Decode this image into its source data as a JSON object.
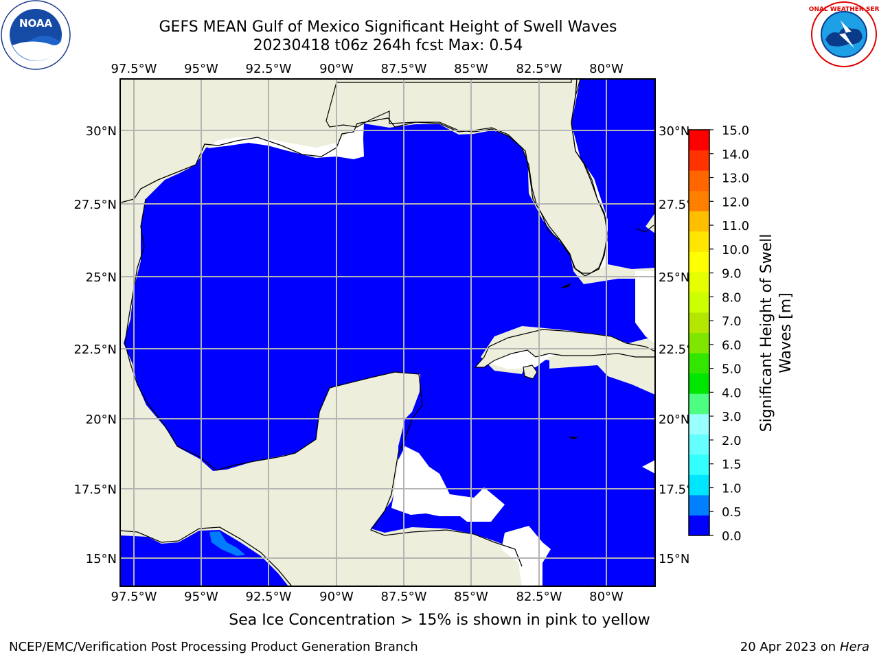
{
  "header": {
    "title": "GEFS MEAN Gulf of Mexico Significant Height of Swell Waves",
    "subtitle": "20230418 t06z 264h fcst   Max: 0.54"
  },
  "logos": {
    "left": {
      "name": "noaa-logo",
      "text": "NOAA"
    },
    "right": {
      "name": "nws-logo",
      "text": "NATIONAL WEATHER SERVICE"
    }
  },
  "map": {
    "lon_labels": [
      "97.5°W",
      "95°W",
      "92.5°W",
      "90°W",
      "87.5°W",
      "85°W",
      "82.5°W",
      "80°W"
    ],
    "lat_labels": [
      "30°N",
      "27.5°N",
      "25°N",
      "22.5°N",
      "20°N",
      "17.5°N",
      "15°N"
    ],
    "colors": {
      "land": "#eeeedc",
      "ocean": "#0000ff",
      "grid": "#b4b4b4",
      "nodata": "#ffffff",
      "swell_05": "#007cff"
    }
  },
  "colorbar": {
    "label": "Significant Height of Swell Waves [m]",
    "label_line1": "Significant Height of Swell",
    "label_line2": "Waves [m]",
    "ticks": [
      "0.0",
      "0.5",
      "1.0",
      "1.5",
      "2.0",
      "3.0",
      "4.0",
      "5.0",
      "6.0",
      "7.0",
      "8.0",
      "9.0",
      "10.0",
      "11.0",
      "12.0",
      "13.0",
      "14.0",
      "15.0"
    ],
    "colors": [
      "#0000ff",
      "#0080ff",
      "#00e6ff",
      "#33ffff",
      "#66ffff",
      "#99ffff",
      "#4dff80",
      "#00e600",
      "#33e600",
      "#80e600",
      "#b3e600",
      "#ccff00",
      "#e6ff00",
      "#ffff00",
      "#ffe600",
      "#ffbf00",
      "#ff8000",
      "#ff6600",
      "#ff3300",
      "#ff0000"
    ]
  },
  "notes": {
    "sea_ice": "Sea Ice Concentration > 15% is shown in pink to yellow"
  },
  "footer": {
    "left": "NCEP/EMC/Verification Post Processing Product Generation Branch",
    "date": "20 Apr 2023 on ",
    "machine": "Hera"
  }
}
